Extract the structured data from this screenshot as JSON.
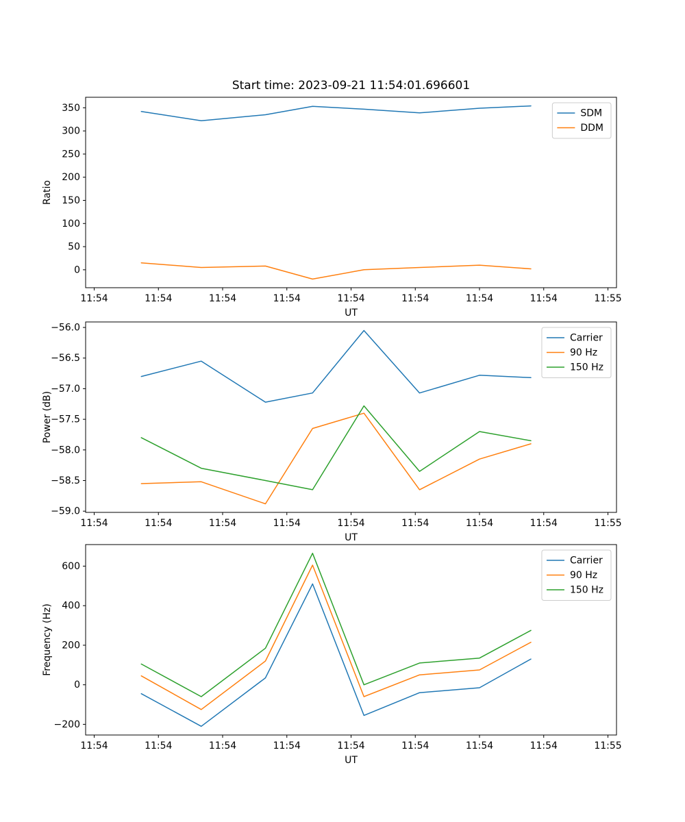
{
  "figure": {
    "title": "Start time: 2023-09-21 11:54:01.696601",
    "x_unit": "seconds after 11:54:00 UT"
  },
  "chart_data": [
    {
      "type": "line",
      "title": "Start time: 2023-09-21 11:54:01.696601",
      "xlabel": "UT",
      "ylabel": "Ratio",
      "legend_position": "upper right",
      "grid": false,
      "xlim_seconds": [
        -1,
        61
      ],
      "xticks_seconds": [
        0,
        7.5,
        15,
        22.5,
        30,
        37.5,
        45,
        52.5,
        60
      ],
      "xtick_labels": [
        "11:54",
        "11:54",
        "11:54",
        "11:54",
        "11:54",
        "11:54",
        "11:54",
        "11:54",
        "11:55"
      ],
      "ylim": [
        -38.7,
        372.7
      ],
      "yticks": [
        0,
        50,
        100,
        150,
        200,
        250,
        300,
        350
      ],
      "ytick_labels": [
        "0",
        "50",
        "100",
        "150",
        "200",
        "250",
        "300",
        "350"
      ],
      "x_seconds": [
        5.5,
        12.5,
        20,
        25.5,
        31.5,
        38,
        45,
        51
      ],
      "series": [
        {
          "name": "SDM",
          "color": "#1f77b4",
          "values": [
            342,
            322,
            335,
            353,
            347,
            339,
            349,
            354
          ]
        },
        {
          "name": "DDM",
          "color": "#ff7f0e",
          "values": [
            15,
            5,
            8,
            -20,
            0,
            5,
            10,
            2
          ]
        }
      ]
    },
    {
      "type": "line",
      "title": "",
      "xlabel": "UT",
      "ylabel": "Power (dB)",
      "legend_position": "upper right",
      "grid": false,
      "xlim_seconds": [
        -1,
        61
      ],
      "xticks_seconds": [
        0,
        7.5,
        15,
        22.5,
        30,
        37.5,
        45,
        52.5,
        60
      ],
      "xtick_labels": [
        "11:54",
        "11:54",
        "11:54",
        "11:54",
        "11:54",
        "11:54",
        "11:54",
        "11:54",
        "11:55"
      ],
      "ylim": [
        -59.02,
        -55.91
      ],
      "yticks": [
        -59.0,
        -58.5,
        -58.0,
        -57.5,
        -57.0,
        -56.5,
        -56.0
      ],
      "ytick_labels": [
        "−59.0",
        "−58.5",
        "−58.0",
        "−57.5",
        "−57.0",
        "−56.5",
        "−56.0"
      ],
      "x_seconds": [
        5.5,
        12.5,
        20,
        25.5,
        31.5,
        38,
        45,
        51
      ],
      "series": [
        {
          "name": "Carrier",
          "color": "#1f77b4",
          "values": [
            -56.8,
            -56.55,
            -57.22,
            -57.07,
            -56.05,
            -57.07,
            -56.78,
            -56.82
          ]
        },
        {
          "name": "90 Hz",
          "color": "#ff7f0e",
          "values": [
            -58.55,
            -58.52,
            -58.88,
            -57.65,
            -57.4,
            -58.65,
            -58.15,
            -57.9
          ]
        },
        {
          "name": "150 Hz",
          "color": "#2ca02c",
          "values": [
            -57.8,
            -58.3,
            -58.5,
            -58.65,
            -57.28,
            -58.35,
            -57.7,
            -57.85
          ]
        }
      ]
    },
    {
      "type": "line",
      "title": "",
      "xlabel": "UT",
      "ylabel": "Frequency (Hz)",
      "legend_position": "upper right",
      "grid": false,
      "xlim_seconds": [
        -1,
        61
      ],
      "xticks_seconds": [
        0,
        7.5,
        15,
        22.5,
        30,
        37.5,
        45,
        52.5,
        60
      ],
      "xtick_labels": [
        "11:54",
        "11:54",
        "11:54",
        "11:54",
        "11:54",
        "11:54",
        "11:54",
        "11:54",
        "11:55"
      ],
      "ylim": [
        -254,
        709
      ],
      "yticks": [
        -200,
        0,
        200,
        400,
        600
      ],
      "ytick_labels": [
        "−200",
        "0",
        "200",
        "400",
        "600"
      ],
      "x_seconds": [
        5.5,
        12.5,
        20,
        25.5,
        31.5,
        38,
        45,
        51
      ],
      "series": [
        {
          "name": "Carrier",
          "color": "#1f77b4",
          "values": [
            -45,
            -210,
            35,
            510,
            -155,
            -40,
            -15,
            130
          ]
        },
        {
          "name": "90 Hz",
          "color": "#ff7f0e",
          "values": [
            45,
            -125,
            120,
            605,
            -60,
            50,
            75,
            215
          ]
        },
        {
          "name": "150 Hz",
          "color": "#2ca02c",
          "values": [
            105,
            -60,
            185,
            665,
            0,
            110,
            135,
            275
          ]
        }
      ]
    }
  ]
}
